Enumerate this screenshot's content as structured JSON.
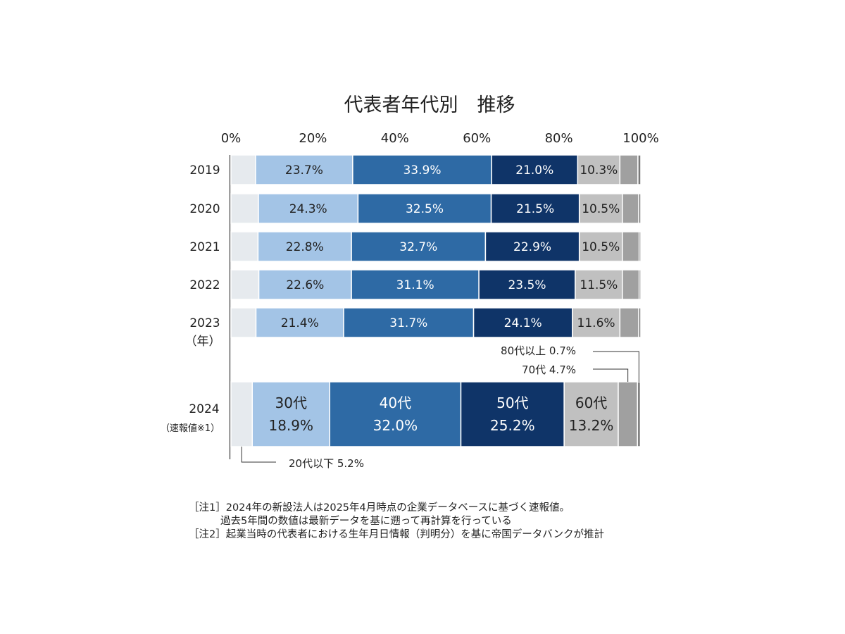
{
  "chart_data": {
    "type": "bar",
    "orientation": "horizontal",
    "stacked": true,
    "percent": true,
    "title": "代表者年代別　推移",
    "x_ticks": [
      "0%",
      "20%",
      "40%",
      "60%",
      "80%",
      "100%"
    ],
    "xlim": [
      0,
      100
    ],
    "categories": [
      {
        "label": "2019",
        "sub": ""
      },
      {
        "label": "2020",
        "sub": ""
      },
      {
        "label": "2021",
        "sub": ""
      },
      {
        "label": "2022",
        "sub": ""
      },
      {
        "label": "2023",
        "sub": "（年）"
      },
      {
        "label": "2024",
        "sub": "（速報値※1）"
      }
    ],
    "series": [
      {
        "key": "u20",
        "color": "#e6eaee",
        "values": [
          6.0,
          6.7,
          6.6,
          6.8,
          6.1,
          5.2
        ]
      },
      {
        "key": "s30",
        "color": "#a3c4e6",
        "text_color": "#222222",
        "values": [
          23.7,
          24.3,
          22.8,
          22.6,
          21.4,
          18.9
        ]
      },
      {
        "key": "s40",
        "color": "#2e6aa5",
        "text_color": "#ffffff",
        "values": [
          33.9,
          32.5,
          32.7,
          31.1,
          31.7,
          32.0
        ]
      },
      {
        "key": "s50",
        "color": "#0f3468",
        "text_color": "#ffffff",
        "values": [
          21.0,
          21.5,
          22.9,
          23.5,
          24.1,
          25.2
        ]
      },
      {
        "key": "s60",
        "color": "#c0c0c0",
        "text_color": "#222222",
        "values": [
          10.3,
          10.5,
          10.5,
          11.5,
          11.6,
          13.2
        ]
      },
      {
        "key": "s70",
        "color": "#a0a0a0",
        "values": [
          4.4,
          4.0,
          4.1,
          4.1,
          4.6,
          4.7
        ]
      },
      {
        "key": "s80",
        "color": "#7a7a7a",
        "values": [
          0.7,
          0.5,
          0.4,
          0.4,
          0.5,
          0.7
        ]
      }
    ],
    "segment_labels": [
      [
        "23.7%",
        "33.9%",
        "21.0%",
        "10.3%"
      ],
      [
        "24.3%",
        "32.5%",
        "21.5%",
        "10.5%"
      ],
      [
        "22.8%",
        "32.7%",
        "22.9%",
        "10.5%"
      ],
      [
        "22.6%",
        "31.1%",
        "23.5%",
        "11.5%"
      ],
      [
        "21.4%",
        "31.7%",
        "24.1%",
        "11.6%"
      ]
    ],
    "highlight_row_labels": [
      {
        "name": "30代",
        "value": "18.9%"
      },
      {
        "name": "40代",
        "value": "32.0%"
      },
      {
        "name": "50代",
        "value": "25.2%"
      },
      {
        "name": "60代",
        "value": "13.2%"
      }
    ],
    "callouts": {
      "over80": "80代以上 0.7%",
      "s70": "70代 4.7%",
      "u20": "20代以下 5.2%"
    },
    "legend": "none",
    "grid": false
  },
  "notes": {
    "note1": "［注1］2024年の新設法人は2025年4月時点の企業データベースに基づく速報値。",
    "note1b": "過去5年間の数値は最新データを基に遡って再計算を行っている",
    "note2": "［注2］起業当時の代表者における生年月日情報（判明分）を基に帝国データバンクが推計"
  }
}
